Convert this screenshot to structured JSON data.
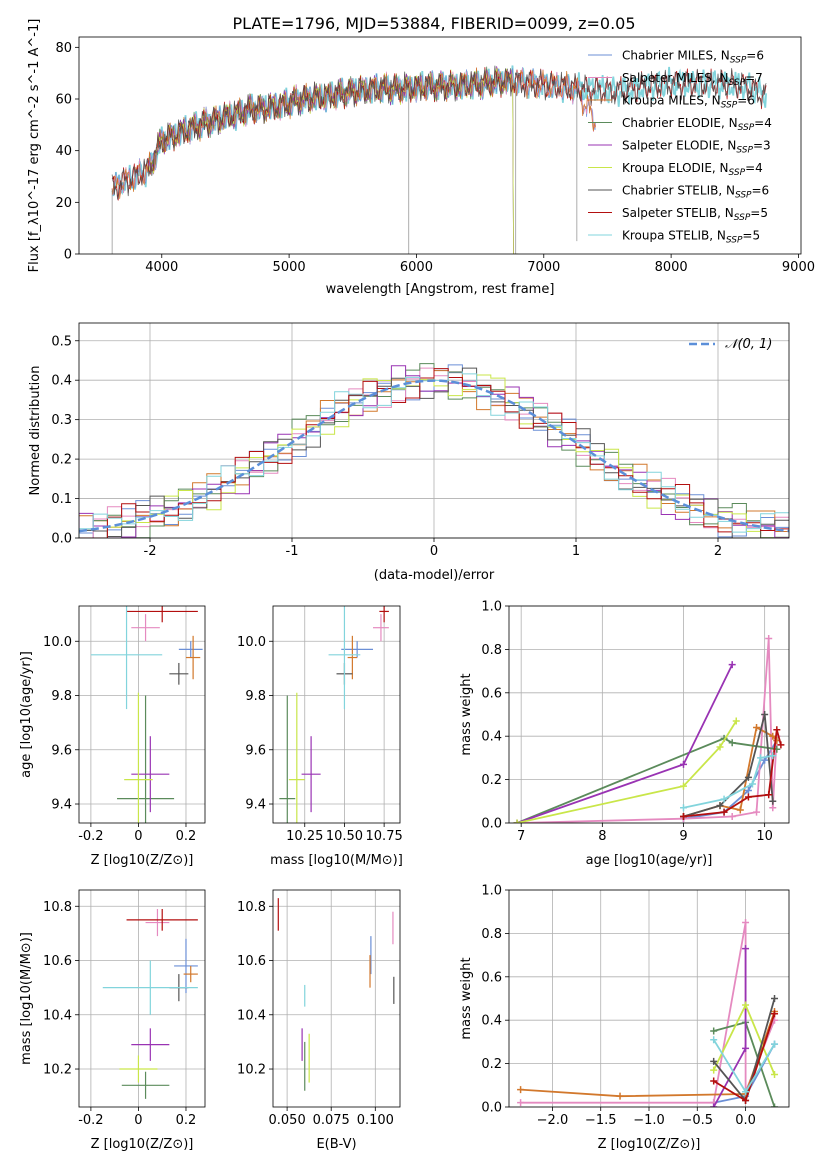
{
  "title": "PLATE=1796, MJD=53884, FIBERID=0099, z=0.05",
  "colors": {
    "Chabrier MILES": "#6b8fd6",
    "Salpeter MILES": "#e58ac0",
    "Kroupa MILES": "#d2782c",
    "Chabrier ELODIE": "#5b8b5b",
    "Salpeter ELODIE": "#9933b3",
    "Kroupa ELODIE": "#c9e649",
    "Chabrier STELIB": "#555555",
    "Salpeter STELIB": "#b30f0f",
    "Kroupa STELIB": "#82d4dc"
  },
  "models": [
    "Chabrier MILES",
    "Salpeter MILES",
    "Kroupa MILES",
    "Chabrier ELODIE",
    "Salpeter ELODIE",
    "Kroupa ELODIE",
    "Chabrier STELIB",
    "Salpeter STELIB",
    "Kroupa STELIB"
  ],
  "chart_data": [
    {
      "id": "spectrum",
      "type": "line",
      "xlabel": "wavelength [Angstrom, rest frame]",
      "ylabel": "Flux [f_λ10^-17 erg cm^-2 s^-1 A^-1]",
      "xlim": [
        3350,
        9020
      ],
      "ylim": [
        0,
        84
      ],
      "xticks": [
        4000,
        5000,
        6000,
        7000,
        8000,
        9000
      ],
      "yticks": [
        0,
        20,
        40,
        60,
        80
      ],
      "legend_position": "top-right",
      "legend": [
        {
          "model": "Chabrier MILES",
          "label": "Chabrier MILES, N",
          "sub": "SSP",
          "n": "=6"
        },
        {
          "model": "Salpeter MILES",
          "label": "Salpeter MILES, N",
          "sub": "SSP",
          "n": "=7"
        },
        {
          "model": "Kroupa MILES",
          "label": "Kroupa MILES, N",
          "sub": "SSP",
          "n": "=6"
        },
        {
          "model": "Chabrier ELODIE",
          "label": "Chabrier ELODIE, N",
          "sub": "SSP",
          "n": "=4"
        },
        {
          "model": "Salpeter ELODIE",
          "label": "Salpeter ELODIE, N",
          "sub": "SSP",
          "n": "=3"
        },
        {
          "model": "Kroupa ELODIE",
          "label": "Kroupa ELODIE, N",
          "sub": "SSP",
          "n": "=4"
        },
        {
          "model": "Chabrier STELIB",
          "label": "Chabrier STELIB, N",
          "sub": "SSP",
          "n": "=6"
        },
        {
          "model": "Salpeter STELIB",
          "label": "Salpeter STELIB, N",
          "sub": "SSP",
          "n": "=5"
        },
        {
          "model": "Kroupa STELIB",
          "label": "Kroupa STELIB, N",
          "sub": "SSP",
          "n": "=5"
        }
      ],
      "continuum": [
        [
          3610,
          25
        ],
        [
          3700,
          28
        ],
        [
          3800,
          30
        ],
        [
          3900,
          33
        ],
        [
          4000,
          44
        ],
        [
          4100,
          46
        ],
        [
          4300,
          50
        ],
        [
          4500,
          53
        ],
        [
          4700,
          56
        ],
        [
          4900,
          57
        ],
        [
          5100,
          60
        ],
        [
          5300,
          61
        ],
        [
          5500,
          63
        ],
        [
          5700,
          64
        ],
        [
          5900,
          64
        ],
        [
          6100,
          65
        ],
        [
          6300,
          65
        ],
        [
          6500,
          66
        ],
        [
          6700,
          67
        ],
        [
          6900,
          66
        ],
        [
          7100,
          65
        ],
        [
          7300,
          64
        ],
        [
          7600,
          63
        ],
        [
          7800,
          65
        ],
        [
          8000,
          66
        ],
        [
          8200,
          66
        ],
        [
          8400,
          66
        ],
        [
          8600,
          65
        ],
        [
          8700,
          62
        ]
      ],
      "model_ranges": {
        "Chabrier MILES": [
          3610,
          7410
        ],
        "Salpeter MILES": [
          3610,
          7410
        ],
        "Kroupa MILES": [
          3610,
          7410
        ],
        "Chabrier ELODIE": [
          3900,
          6800
        ],
        "Salpeter ELODIE": [
          3900,
          6800
        ],
        "Kroupa ELODIE": [
          3900,
          6800
        ],
        "Chabrier STELIB": [
          3610,
          8750
        ],
        "Salpeter STELIB": [
          3610,
          8750
        ],
        "Kroupa STELIB": [
          3610,
          8750
        ]
      }
    },
    {
      "id": "residuals",
      "type": "line",
      "xlabel": "(data-model)/error",
      "ylabel": "Normed distribution",
      "xlim": [
        -2.5,
        2.5
      ],
      "ylim": [
        0,
        0.545
      ],
      "xticks": [
        -2,
        -1,
        0,
        1,
        2
      ],
      "yticks": [
        0.0,
        0.1,
        0.2,
        0.3,
        0.4,
        0.5
      ],
      "grid": true,
      "legend_position": "top-right",
      "gaussian_label": "𝒩(0, 1)",
      "bin_width": 0.1,
      "hist_scatter_amplitude": 0.05
    },
    {
      "id": "age-vs-Z",
      "type": "scatter",
      "xlabel": "Z [log10(Z/Z⊙)]",
      "ylabel": "age [log10(age/yr)]",
      "xlim": [
        -0.25,
        0.28
      ],
      "ylim": [
        9.33,
        10.13
      ],
      "xticks": [
        -0.2,
        0.0,
        0.2
      ],
      "yticks": [
        9.4,
        9.6,
        9.8,
        10.0
      ],
      "grid": true,
      "points": [
        {
          "model": "Chabrier MILES",
          "x": 0.22,
          "y": 9.97,
          "xerr": 0.05,
          "yerr": 0.03
        },
        {
          "model": "Salpeter MILES",
          "x": 0.03,
          "y": 10.05,
          "xerr": 0.06,
          "yerr": 0.05
        },
        {
          "model": "Kroupa MILES",
          "x": 0.23,
          "y": 9.94,
          "xerr": 0.03,
          "yerr": 0.08
        },
        {
          "model": "Chabrier ELODIE",
          "x": 0.03,
          "y": 9.42,
          "xerr": 0.12,
          "yerr": 0.38
        },
        {
          "model": "Salpeter ELODIE",
          "x": 0.05,
          "y": 9.51,
          "xerr": 0.08,
          "yerr": 0.14
        },
        {
          "model": "Kroupa ELODIE",
          "x": 0.0,
          "y": 9.49,
          "xerr": 0.06,
          "yerr": 0.32
        },
        {
          "model": "Chabrier STELIB",
          "x": 0.17,
          "y": 9.88,
          "xerr": 0.04,
          "yerr": 0.04
        },
        {
          "model": "Salpeter STELIB",
          "x": 0.1,
          "y": 10.11,
          "xerr": 0.15,
          "yerr": 0.04
        },
        {
          "model": "Kroupa STELIB",
          "x": -0.05,
          "y": 9.95,
          "xerr": 0.15,
          "yerr": 0.2
        }
      ]
    },
    {
      "id": "age-vs-mass",
      "type": "scatter",
      "xlabel": "mass [log10(M/M⊙)]",
      "ylabel": "",
      "xlim": [
        10.05,
        10.85
      ],
      "ylim": [
        9.33,
        10.13
      ],
      "xticks": [
        10.25,
        10.5,
        10.75
      ],
      "tick_labels": [
        "10.25",
        "10.50",
        "10.75"
      ],
      "yticks": [
        9.4,
        9.6,
        9.8,
        10.0
      ],
      "grid": true,
      "points": [
        {
          "model": "Chabrier MILES",
          "x": 10.58,
          "y": 9.97,
          "xerr": 0.1,
          "yerr": 0.03
        },
        {
          "model": "Salpeter MILES",
          "x": 10.73,
          "y": 10.05,
          "xerr": 0.05,
          "yerr": 0.05
        },
        {
          "model": "Kroupa MILES",
          "x": 10.55,
          "y": 9.94,
          "xerr": 0.03,
          "yerr": 0.08
        },
        {
          "model": "Chabrier ELODIE",
          "x": 10.14,
          "y": 9.42,
          "xerr": 0.05,
          "yerr": 0.38
        },
        {
          "model": "Salpeter ELODIE",
          "x": 10.29,
          "y": 9.51,
          "xerr": 0.06,
          "yerr": 0.14
        },
        {
          "model": "Kroupa ELODIE",
          "x": 10.2,
          "y": 9.49,
          "xerr": 0.05,
          "yerr": 0.32
        },
        {
          "model": "Chabrier STELIB",
          "x": 10.5,
          "y": 9.88,
          "xerr": 0.05,
          "yerr": 0.04
        },
        {
          "model": "Salpeter STELIB",
          "x": 10.75,
          "y": 10.11,
          "xerr": 0.03,
          "yerr": 0.04
        },
        {
          "model": "Kroupa STELIB",
          "x": 10.5,
          "y": 9.95,
          "xerr": 0.1,
          "yerr": 0.2
        }
      ]
    },
    {
      "id": "weight-vs-age",
      "type": "line",
      "xlabel": "age [log10(age/yr)]",
      "ylabel": "mass weight",
      "xlim": [
        6.85,
        10.3
      ],
      "ylim": [
        0.0,
        1.0
      ],
      "xticks": [
        7,
        8,
        9,
        10
      ],
      "yticks": [
        0.0,
        0.2,
        0.4,
        0.6,
        0.8,
        1.0
      ],
      "grid": true,
      "series": [
        {
          "model": "Chabrier MILES",
          "x": [
            9.0,
            9.5,
            9.8,
            10.0,
            10.15
          ],
          "y": [
            0.02,
            0.05,
            0.15,
            0.29,
            0.38
          ]
        },
        {
          "model": "Salpeter MILES",
          "x": [
            6.95,
            9.0,
            9.6,
            9.9,
            10.05,
            10.1,
            10.15
          ],
          "y": [
            0.0,
            0.02,
            0.03,
            0.05,
            0.85,
            0.07,
            0.4
          ]
        },
        {
          "model": "Kroupa MILES",
          "x": [
            9.0,
            9.45,
            9.7,
            9.9,
            10.1,
            10.15
          ],
          "y": [
            0.03,
            0.08,
            0.06,
            0.44,
            0.4,
            0.38
          ]
        },
        {
          "model": "Chabrier ELODIE",
          "x": [
            6.95,
            9.5,
            9.6,
            10.15
          ],
          "y": [
            0.0,
            0.39,
            0.37,
            0.34
          ]
        },
        {
          "model": "Salpeter ELODIE",
          "x": [
            6.95,
            9.0,
            9.6
          ],
          "y": [
            0.0,
            0.27,
            0.73
          ]
        },
        {
          "model": "Kroupa ELODIE",
          "x": [
            6.95,
            9.0,
            9.45,
            9.65
          ],
          "y": [
            0.0,
            0.17,
            0.35,
            0.47
          ]
        },
        {
          "model": "Chabrier STELIB",
          "x": [
            9.0,
            9.45,
            9.8,
            10.0,
            10.1
          ],
          "y": [
            0.03,
            0.08,
            0.21,
            0.5,
            0.1
          ]
        },
        {
          "model": "Salpeter STELIB",
          "x": [
            9.0,
            9.5,
            9.8,
            10.05,
            10.15,
            10.2
          ],
          "y": [
            0.03,
            0.05,
            0.12,
            0.13,
            0.43,
            0.36
          ]
        },
        {
          "model": "Kroupa STELIB",
          "x": [
            9.0,
            9.5,
            9.85,
            9.95,
            10.1
          ],
          "y": [
            0.07,
            0.11,
            0.18,
            0.3,
            0.31
          ]
        }
      ]
    },
    {
      "id": "mass-vs-Z",
      "type": "scatter",
      "xlabel": "Z [log10(Z/Z⊙)]",
      "ylabel": "mass [log10(M/M⊙)]",
      "xlim": [
        -0.25,
        0.28
      ],
      "ylim": [
        10.06,
        10.86
      ],
      "xticks": [
        -0.2,
        0.0,
        0.2
      ],
      "yticks": [
        10.2,
        10.4,
        10.6,
        10.8
      ],
      "grid": true,
      "points": [
        {
          "model": "Chabrier MILES",
          "x": 0.2,
          "y": 10.58,
          "xerr": 0.05,
          "yerr": 0.1
        },
        {
          "model": "Salpeter MILES",
          "x": 0.08,
          "y": 10.74,
          "xerr": 0.05,
          "yerr": 0.05
        },
        {
          "model": "Kroupa MILES",
          "x": 0.22,
          "y": 10.55,
          "xerr": 0.03,
          "yerr": 0.03
        },
        {
          "model": "Chabrier ELODIE",
          "x": 0.03,
          "y": 10.14,
          "xerr": 0.1,
          "yerr": 0.05
        },
        {
          "model": "Salpeter ELODIE",
          "x": 0.05,
          "y": 10.29,
          "xerr": 0.08,
          "yerr": 0.06
        },
        {
          "model": "Kroupa ELODIE",
          "x": 0.0,
          "y": 10.2,
          "xerr": 0.08,
          "yerr": 0.05
        },
        {
          "model": "Chabrier STELIB",
          "x": 0.17,
          "y": 10.5,
          "xerr": 0.04,
          "yerr": 0.05
        },
        {
          "model": "Salpeter STELIB",
          "x": 0.1,
          "y": 10.75,
          "xerr": 0.15,
          "yerr": 0.04
        },
        {
          "model": "Kroupa STELIB",
          "x": 0.05,
          "y": 10.5,
          "xerr": 0.2,
          "yerr": 0.1
        }
      ]
    },
    {
      "id": "mass-vs-ebv",
      "type": "scatter",
      "xlabel": "E(B-V)",
      "ylabel": "",
      "xlim": [
        0.042,
        0.114
      ],
      "ylim": [
        10.06,
        10.86
      ],
      "xticks": [
        0.05,
        0.075,
        0.1
      ],
      "tick_labels": [
        "0.050",
        "0.075",
        "0.100"
      ],
      "yticks": [
        10.2,
        10.4,
        10.6,
        10.8
      ],
      "grid": true,
      "points": [
        {
          "model": "Chabrier MILES",
          "x": 0.0975,
          "y": 10.62,
          "xerr": 0,
          "yerr": 0.07
        },
        {
          "model": "Salpeter MILES",
          "x": 0.11,
          "y": 10.72,
          "xerr": 0,
          "yerr": 0.06
        },
        {
          "model": "Kroupa MILES",
          "x": 0.097,
          "y": 10.56,
          "xerr": 0,
          "yerr": 0.06
        },
        {
          "model": "Chabrier ELODIE",
          "x": 0.06,
          "y": 10.21,
          "xerr": 0,
          "yerr": 0.09
        },
        {
          "model": "Salpeter ELODIE",
          "x": 0.0585,
          "y": 10.29,
          "xerr": 0,
          "yerr": 0.06
        },
        {
          "model": "Kroupa ELODIE",
          "x": 0.0625,
          "y": 10.24,
          "xerr": 0,
          "yerr": 0.09
        },
        {
          "model": "Chabrier STELIB",
          "x": 0.1105,
          "y": 10.49,
          "xerr": 0,
          "yerr": 0.05
        },
        {
          "model": "Salpeter STELIB",
          "x": 0.045,
          "y": 10.77,
          "xerr": 0,
          "yerr": 0.06
        },
        {
          "model": "Kroupa STELIB",
          "x": 0.06,
          "y": 10.47,
          "xerr": 0,
          "yerr": 0.04
        }
      ]
    },
    {
      "id": "weight-vs-Z",
      "type": "line",
      "xlabel": "Z [log10(Z/Z⊙)]",
      "ylabel": "mass weight",
      "xlim": [
        -2.45,
        0.45
      ],
      "ylim": [
        0.0,
        1.0
      ],
      "xticks": [
        -2.0,
        -1.5,
        -1.0,
        -0.5,
        0.0
      ],
      "yticks": [
        0.0,
        0.2,
        0.4,
        0.6,
        0.8,
        1.0
      ],
      "grid": true,
      "series": [
        {
          "model": "Chabrier MILES",
          "x": [
            -0.33,
            0.0,
            0.3
          ],
          "y": [
            0.02,
            0.05,
            0.29
          ]
        },
        {
          "model": "Salpeter MILES",
          "x": [
            -2.33,
            -0.33,
            0.0,
            0.0,
            0.3
          ],
          "y": [
            0.02,
            0.02,
            0.85,
            0.07,
            0.4
          ]
        },
        {
          "model": "Kroupa MILES",
          "x": [
            -2.33,
            -1.3,
            0.0,
            0.3
          ],
          "y": [
            0.08,
            0.05,
            0.06,
            0.44
          ]
        },
        {
          "model": "Chabrier ELODIE",
          "x": [
            -0.33,
            0.0,
            0.3
          ],
          "y": [
            0.35,
            0.39,
            0.0
          ]
        },
        {
          "model": "Salpeter ELODIE",
          "x": [
            -0.33,
            0.0,
            0.0
          ],
          "y": [
            0.0,
            0.27,
            0.73
          ]
        },
        {
          "model": "Kroupa ELODIE",
          "x": [
            -0.33,
            0.0,
            0.3
          ],
          "y": [
            0.17,
            0.47,
            0.15
          ]
        },
        {
          "model": "Chabrier STELIB",
          "x": [
            -0.33,
            0.0,
            0.3
          ],
          "y": [
            0.21,
            0.03,
            0.5
          ]
        },
        {
          "model": "Salpeter STELIB",
          "x": [
            -0.33,
            0.0,
            0.3
          ],
          "y": [
            0.12,
            0.03,
            0.43
          ]
        },
        {
          "model": "Kroupa STELIB",
          "x": [
            -0.33,
            0.0,
            0.3
          ],
          "y": [
            0.31,
            0.07,
            0.29
          ]
        }
      ]
    }
  ]
}
